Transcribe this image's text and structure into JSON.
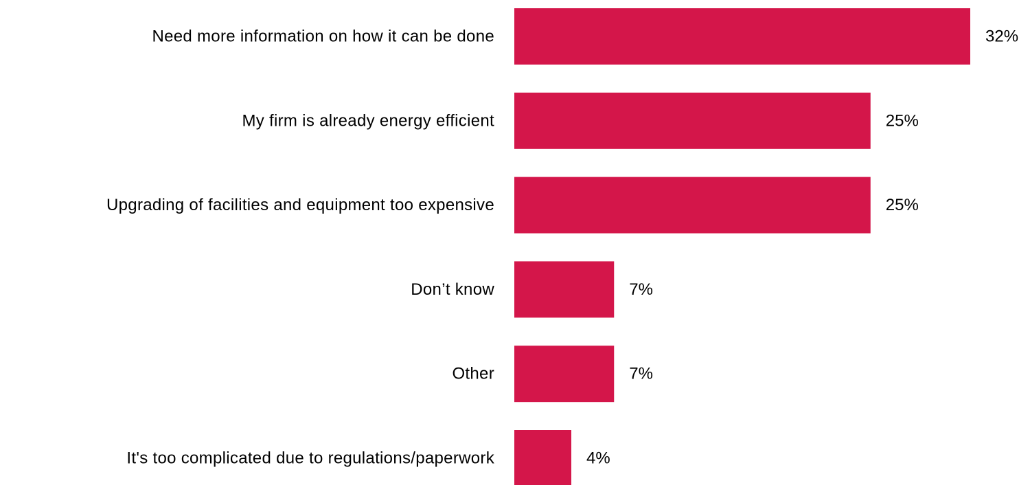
{
  "chart_data": {
    "type": "bar",
    "orientation": "horizontal",
    "categories": [
      "Need more information on how it can be done",
      "My firm is already energy efficient",
      "Upgrading of facilities and equipment too expensive",
      "Don’t know",
      "Other",
      "It's too complicated due to regulations/paperwork"
    ],
    "values": [
      32,
      25,
      25,
      7,
      7,
      4
    ],
    "data_labels": [
      "32%",
      "25%",
      "25%",
      "7%",
      "7%",
      "4%"
    ],
    "xlim": [
      0,
      32
    ],
    "grid": false,
    "legend": "none",
    "bar_color": "#d4164a"
  }
}
